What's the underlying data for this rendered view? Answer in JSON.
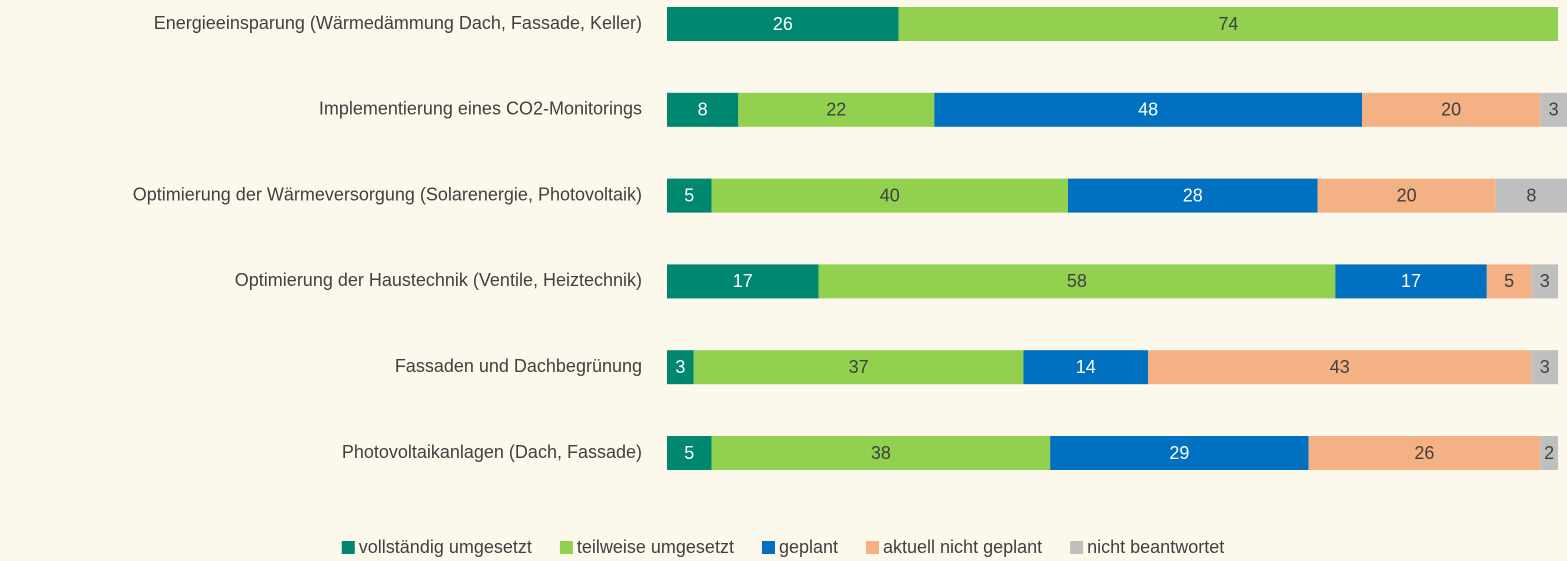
{
  "chart_data": {
    "type": "stacked_bar_horizontal",
    "categories": [
      "Energieeinsparung (Wärmedämmung Dach, Fassade, Keller)",
      "Implementierung eines CO2-Monitorings",
      "Optimierung der Wärmeversorgung (Solarenergie, Photovoltaik)",
      "Optimierung der Haustechnik (Ventile, Heiztechnik)",
      "Fassaden und Dachbegrünung",
      "Photovoltaikanlagen (Dach, Fassade)"
    ],
    "series": [
      {
        "name": "vollständig umgesetzt",
        "color": "#00876f",
        "values": [
          26,
          8,
          5,
          17,
          3,
          5
        ]
      },
      {
        "name": "teilweise umgesetzt",
        "color": "#92d050",
        "values": [
          74,
          22,
          40,
          58,
          37,
          38
        ]
      },
      {
        "name": "geplant",
        "color": "#0070c0",
        "values": [
          null,
          48,
          28,
          17,
          14,
          29
        ]
      },
      {
        "name": "aktuell nicht geplant",
        "color": "#f4b183",
        "values": [
          null,
          20,
          20,
          5,
          43,
          26
        ]
      },
      {
        "name": "nicht beantwortet",
        "color": "#bfbfbf",
        "values": [
          null,
          3,
          8,
          3,
          3,
          2
        ]
      }
    ],
    "xlim": [
      0,
      101
    ],
    "legend": "bottom"
  }
}
